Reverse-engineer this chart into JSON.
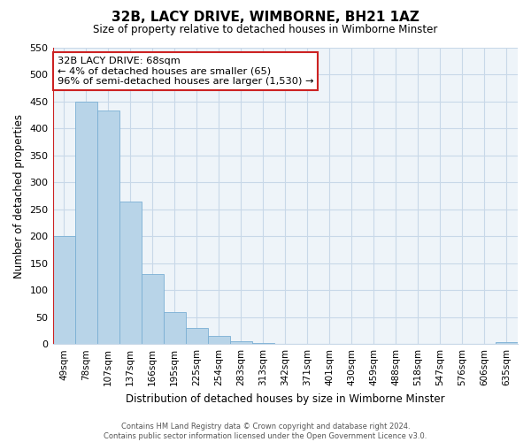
{
  "title": "32B, LACY DRIVE, WIMBORNE, BH21 1AZ",
  "subtitle": "Size of property relative to detached houses in Wimborne Minster",
  "xlabel": "Distribution of detached houses by size in Wimborne Minster",
  "ylabel": "Number of detached properties",
  "footer_line1": "Contains HM Land Registry data © Crown copyright and database right 2024.",
  "footer_line2": "Contains public sector information licensed under the Open Government Licence v3.0.",
  "bar_labels": [
    "49sqm",
    "78sqm",
    "107sqm",
    "137sqm",
    "166sqm",
    "195sqm",
    "225sqm",
    "254sqm",
    "283sqm",
    "313sqm",
    "342sqm",
    "371sqm",
    "401sqm",
    "430sqm",
    "459sqm",
    "488sqm",
    "518sqm",
    "547sqm",
    "576sqm",
    "606sqm",
    "635sqm"
  ],
  "bar_values": [
    200,
    450,
    433,
    265,
    130,
    60,
    30,
    15,
    5,
    2,
    1,
    1,
    0,
    0,
    0,
    0,
    0,
    0,
    0,
    0,
    3
  ],
  "bar_color": "#b8d4e8",
  "bar_edge_color": "#7aafd4",
  "red_color": "#cc2222",
  "annotation_text": "32B LACY DRIVE: 68sqm\n← 4% of detached houses are smaller (65)\n96% of semi-detached houses are larger (1,530) →",
  "annotation_box_color": "#ffffff",
  "annotation_box_edge": "#cc2222",
  "ylim": [
    0,
    550
  ],
  "yticks": [
    0,
    50,
    100,
    150,
    200,
    250,
    300,
    350,
    400,
    450,
    500,
    550
  ],
  "grid_color": "#c8d8e8",
  "background_color": "#ffffff",
  "plot_bg_color": "#eef4f9"
}
